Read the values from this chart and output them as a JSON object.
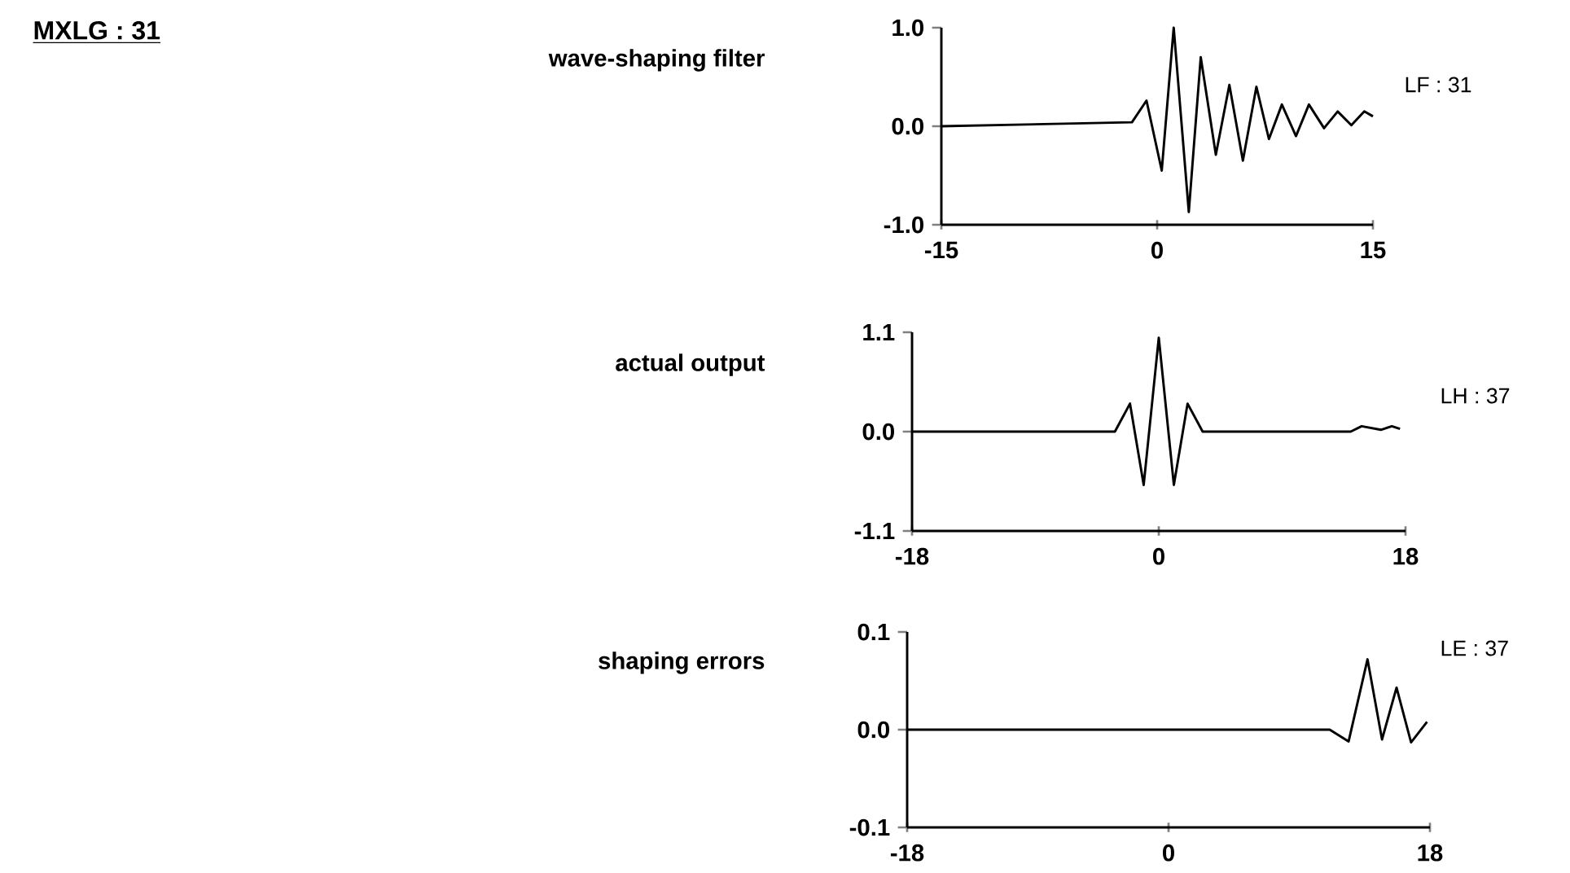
{
  "chart_data": [
    {
      "type": "line",
      "title": "wave-shaping filter",
      "annotations": [
        "LF : 31",
        "MXLG : 31"
      ],
      "xlim": [
        -15,
        15
      ],
      "ylim": [
        -1.0,
        1.0
      ],
      "xticks": [
        -15,
        0,
        15
      ],
      "yticks": [
        {
          "value": -1,
          "label": "-1.0"
        },
        {
          "value": 0,
          "label": "0.0"
        },
        {
          "value": 1,
          "label": "1.0"
        }
      ],
      "series": [
        {
          "color": "#000000",
          "x": [
            -15,
            -1.75,
            -0.74,
            0.32,
            1.15,
            2.2,
            3.03,
            4.08,
            5.02,
            5.96,
            6.9,
            7.77,
            8.67,
            9.65,
            10.55,
            11.6,
            12.55,
            13.5,
            14.4,
            15
          ],
          "values": [
            0,
            0.04,
            0.26,
            -0.45,
            1.0,
            -0.87,
            0.7,
            -0.29,
            0.42,
            -0.35,
            0.4,
            -0.13,
            0.22,
            -0.1,
            0.22,
            -0.02,
            0.15,
            0.01,
            0.15,
            0.1
          ]
        }
      ]
    },
    {
      "type": "line",
      "title": "actual output",
      "annotations": [
        "LH : 37"
      ],
      "xlim": [
        -18,
        18
      ],
      "ylim": [
        -1.1,
        1.1
      ],
      "xticks": [
        -18,
        0,
        18
      ],
      "yticks": [
        {
          "value": -1.1,
          "label": "-1.1"
        },
        {
          "value": 0,
          "label": "0.0"
        },
        {
          "value": 1.1,
          "label": "1.1"
        }
      ],
      "series": [
        {
          "color": "#000000",
          "x": [
            -18,
            -3.2,
            -2.1,
            -1.1,
            0,
            1.1,
            2.1,
            3.2,
            14.0,
            14.8,
            16.2,
            17.0,
            17.6
          ],
          "values": [
            0,
            0,
            0.31,
            -0.59,
            1.04,
            -0.59,
            0.31,
            0,
            0,
            0.06,
            0.02,
            0.06,
            0.03
          ]
        }
      ]
    },
    {
      "type": "line",
      "title": "shaping errors",
      "annotations": [
        "LE : 37"
      ],
      "xlim": [
        -18,
        18
      ],
      "ylim": [
        -0.1,
        0.1
      ],
      "xticks": [
        -18,
        0,
        18
      ],
      "yticks": [
        {
          "value": -0.1,
          "label": "-0.1"
        },
        {
          "value": 0,
          "label": "0.0"
        },
        {
          "value": 0.1,
          "label": "0.1"
        }
      ],
      "series": [
        {
          "color": "#000000",
          "x": [
            -18,
            11.1,
            12.4,
            13.7,
            14.7,
            15.7,
            16.7,
            17.8
          ],
          "values": [
            0,
            0.0,
            -0.012,
            0.072,
            -0.01,
            0.043,
            -0.013,
            0.008
          ]
        }
      ]
    }
  ]
}
